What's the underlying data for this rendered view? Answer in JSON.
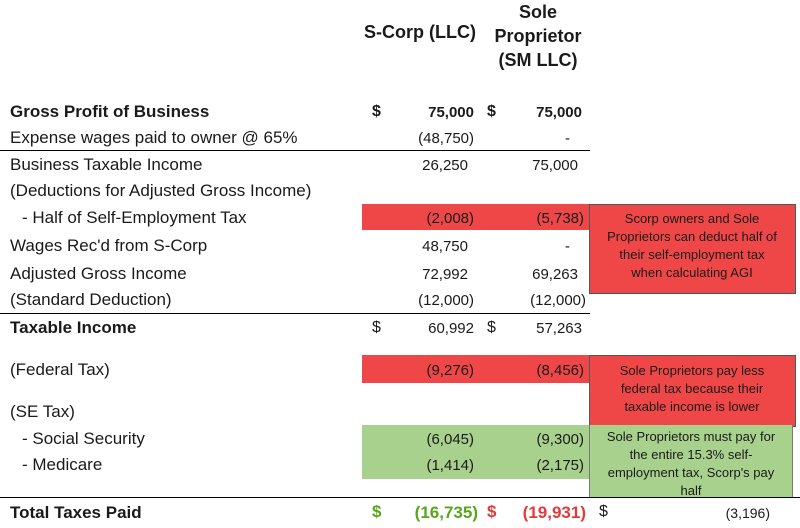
{
  "headers": {
    "scorp": "S-Corp (LLC)",
    "sole_line1": "Sole",
    "sole_line2": "Proprietor",
    "sole_line3": "(SM LLC)"
  },
  "rows": {
    "gross_profit": {
      "label": "Gross Profit of Business",
      "dollar1": "$",
      "scorp": "75,000",
      "dollar2": "$",
      "sole": "75,000"
    },
    "expense_wages": {
      "label": "Expense wages paid to owner @ 65%",
      "scorp": "(48,750)",
      "sole": "-"
    },
    "business_taxable": {
      "label": "Business Taxable Income",
      "scorp": "26,250",
      "sole": "75,000"
    },
    "deductions_heading": {
      "label": "(Deductions for Adjusted Gross Income)"
    },
    "half_se_tax": {
      "label": "- Half of Self-Employment Tax",
      "scorp": "(2,008)",
      "sole": "(5,738)"
    },
    "wages_received": {
      "label": "Wages Rec'd from S-Corp",
      "scorp": "48,750",
      "sole": "-"
    },
    "agi": {
      "label": "Adjusted Gross Income",
      "scorp": "72,992",
      "sole": "69,263"
    },
    "std_deduction": {
      "label": "(Standard Deduction)",
      "scorp": "(12,000)",
      "sole": "(12,000)"
    },
    "taxable_income": {
      "label": "Taxable Income",
      "dollar1": "$",
      "scorp": "60,992",
      "dollar2": "$",
      "sole": "57,263"
    },
    "federal_tax": {
      "label": "(Federal Tax)",
      "scorp": "(9,276)",
      "sole": "(8,456)"
    },
    "se_tax_heading": {
      "label": "(SE Tax)"
    },
    "social_security": {
      "label": "- Social Security",
      "scorp": "(6,045)",
      "sole": "(9,300)"
    },
    "medicare": {
      "label": "- Medicare",
      "scorp": "(1,414)",
      "sole": "(2,175)"
    },
    "total_taxes": {
      "label": "Total Taxes Paid",
      "dollar1": "$",
      "scorp": "(16,735)",
      "dollar2": "$",
      "sole": "(19,931)",
      "dollar3": "$",
      "difference": "(3,196)"
    }
  },
  "notes": {
    "agi_note": [
      "Scorp owners and Sole",
      "Proprietors can deduct half of",
      "their self-employment tax",
      "when calculating AGI"
    ],
    "federal_note": [
      "Sole Proprietors pay less",
      "federal tax because their",
      "taxable income is lower"
    ],
    "se_note": [
      "Sole Proprietors must pay for",
      "the entire 15.3% self-",
      "employment tax, Scorp's pay",
      "half"
    ]
  },
  "colors": {
    "red_highlight": "#ef4747",
    "green_highlight": "#a9d18e",
    "scorp_total_text": "#5aa51e",
    "sole_total_text": "#e23b3b"
  }
}
